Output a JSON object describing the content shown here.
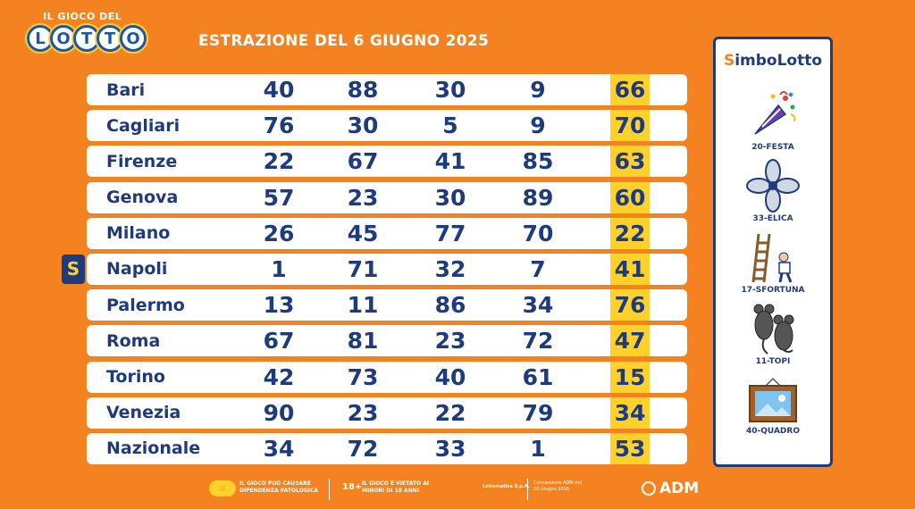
{
  "logo": {
    "top_text": "IL GIOCO DEL",
    "letters": [
      "L",
      "O",
      "T",
      "T",
      "O"
    ]
  },
  "title": "ESTRAZIONE DEL 6 GIUGNO 2025",
  "table": {
    "rows": [
      {
        "city": "Bari",
        "numbers": [
          "40",
          "88",
          "30",
          "9"
        ],
        "bonus": "66"
      },
      {
        "city": "Cagliari",
        "numbers": [
          "76",
          "30",
          "5",
          "9"
        ],
        "bonus": "70"
      },
      {
        "city": "Firenze",
        "numbers": [
          "22",
          "67",
          "41",
          "85"
        ],
        "bonus": "63"
      },
      {
        "city": "Genova",
        "numbers": [
          "57",
          "23",
          "30",
          "89"
        ],
        "bonus": "60"
      },
      {
        "city": "Milano",
        "numbers": [
          "26",
          "45",
          "77",
          "70"
        ],
        "bonus": "22"
      },
      {
        "city": "Napoli",
        "numbers": [
          "1",
          "71",
          "32",
          "7"
        ],
        "bonus": "41",
        "badge": "S"
      },
      {
        "city": "Palermo",
        "numbers": [
          "13",
          "11",
          "86",
          "34"
        ],
        "bonus": "76"
      },
      {
        "city": "Roma",
        "numbers": [
          "67",
          "81",
          "23",
          "72"
        ],
        "bonus": "47"
      },
      {
        "city": "Torino",
        "numbers": [
          "42",
          "73",
          "40",
          "61"
        ],
        "bonus": "15"
      },
      {
        "city": "Venezia",
        "numbers": [
          "90",
          "23",
          "22",
          "79"
        ],
        "bonus": "34"
      },
      {
        "city": "Nazionale",
        "numbers": [
          "34",
          "72",
          "33",
          "1"
        ],
        "bonus": "53"
      }
    ]
  },
  "simbolotto": {
    "title_s": "S",
    "title_rest": "imboLotto",
    "symbols": [
      {
        "label": "20-FESTA",
        "icon": "party-popper-icon"
      },
      {
        "label": "33-ELICA",
        "icon": "propeller-icon"
      },
      {
        "label": "17-SFORTUNA",
        "icon": "ladder-icon"
      },
      {
        "label": "11-TOPI",
        "icon": "mice-icon"
      },
      {
        "label": "40-QUADRO",
        "icon": "picture-frame-icon"
      }
    ]
  },
  "footer": {
    "text1": "IL GIOCO PUÒ CAUSARE DIPENDENZA PATOLOGICA",
    "age": "18+",
    "text2": "IL GIOCO È VIETATO AI MINORI DI 18 ANNI",
    "text3": "Lottomatica S.p.A.",
    "text4": "Concessione ADM del 20 Giugno 2016",
    "adm": "ADM"
  },
  "colors": {
    "background": "#f58220",
    "navy": "#1e3c7d",
    "yellow": "#ffd12a"
  }
}
